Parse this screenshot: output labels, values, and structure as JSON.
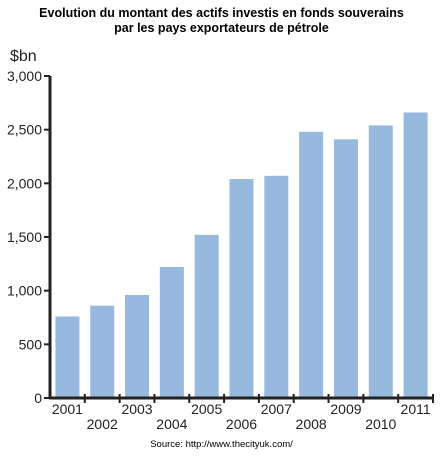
{
  "title_line1": "Evolution du montant des actifs investis en fonds souverains",
  "title_line2": "par les pays exportateurs de pétrole",
  "source": "Source: http://www.thecityuk.com/",
  "chart_data": {
    "type": "bar",
    "categories": [
      "2001",
      "2002",
      "2003",
      "2004",
      "2005",
      "2006",
      "2007",
      "2008",
      "2009",
      "2010",
      "2011"
    ],
    "values": [
      760,
      860,
      960,
      1220,
      1520,
      2040,
      2070,
      2480,
      2410,
      2540,
      2660
    ],
    "ylabel": "$bn",
    "xlabel": "",
    "ylim": [
      0,
      3000
    ],
    "yticks": [
      0,
      500,
      1000,
      1500,
      2000,
      2500,
      3000
    ],
    "ytick_labels": [
      "0",
      "500",
      "1,000",
      "1,500",
      "2,000",
      "2,500",
      "3,000"
    ],
    "grid": false,
    "bar_color": "#97b9de",
    "axis_color": "#222222"
  }
}
